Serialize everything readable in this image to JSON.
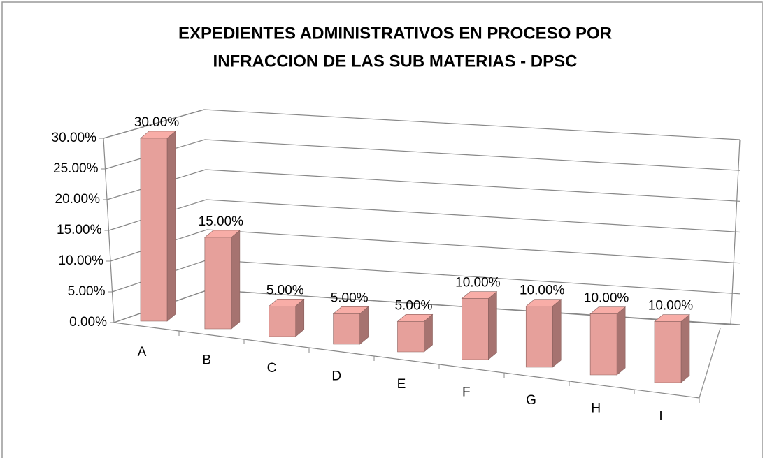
{
  "chart_data": {
    "type": "bar3d",
    "title": [
      "EXPEDIENTES ADMINISTRATIVOS  EN PROCESO POR",
      "INFRACCION DE LAS SUB MATERIAS - DPSC"
    ],
    "categories": [
      "A",
      "B",
      "C",
      "D",
      "E",
      "F",
      "G",
      "H",
      "I"
    ],
    "values": [
      30,
      15,
      5,
      5,
      5,
      10,
      10,
      10,
      10
    ],
    "value_labels": [
      "30.00%",
      "15.00%",
      "5.00%",
      "5.00%",
      "5.00%",
      "10.00%",
      "10.00%",
      "10.00%",
      "10.00%"
    ],
    "color": "#e6a09b",
    "ylim": [
      0,
      30
    ],
    "yticks": [
      {
        "value": 0,
        "label": "0.00%"
      },
      {
        "value": 5,
        "label": "5.00%"
      },
      {
        "value": 10,
        "label": "10.00%"
      },
      {
        "value": 15,
        "label": "15.00%"
      },
      {
        "value": 20,
        "label": "20.00%"
      },
      {
        "value": 25,
        "label": "25.00%"
      },
      {
        "value": 30,
        "label": "30.00%"
      }
    ],
    "grid": true
  }
}
